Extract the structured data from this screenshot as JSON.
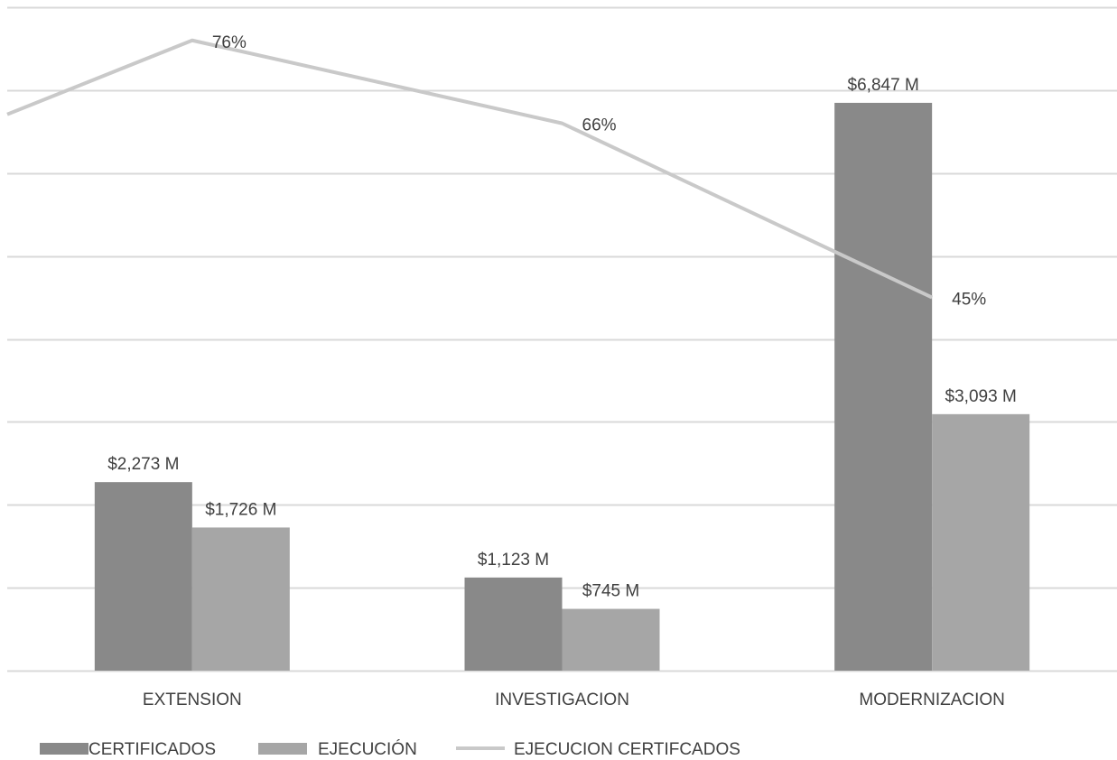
{
  "chart_data": {
    "type": "bar",
    "categories": [
      "EXTENSION",
      "INVESTIGACION",
      "MODERNIZACION"
    ],
    "series": [
      {
        "name": "CERTIFICADOS",
        "type": "bar",
        "values": [
          2273,
          1123,
          6847
        ],
        "labels": [
          "$2,273 M",
          "$1,123 M",
          "$6,847 M"
        ],
        "color": "#898989"
      },
      {
        "name": "EJECUCIÓN",
        "type": "bar",
        "values": [
          1726,
          745,
          3093
        ],
        "labels": [
          "$1,726 M",
          "$745 M",
          "$3,093 M"
        ],
        "color": "#a6a6a6"
      },
      {
        "name": "EJECUCION CERTIFCADOS",
        "type": "line",
        "values": [
          76,
          66,
          45
        ],
        "labels": [
          "76%",
          "66%",
          "45%"
        ],
        "color": "#c9c9c9"
      }
    ],
    "ylim": [
      0,
      8000
    ],
    "y2lim": [
      0,
      80
    ],
    "grid": true,
    "legend_position": "bottom",
    "title": "",
    "xlabel": "",
    "ylabel": ""
  }
}
